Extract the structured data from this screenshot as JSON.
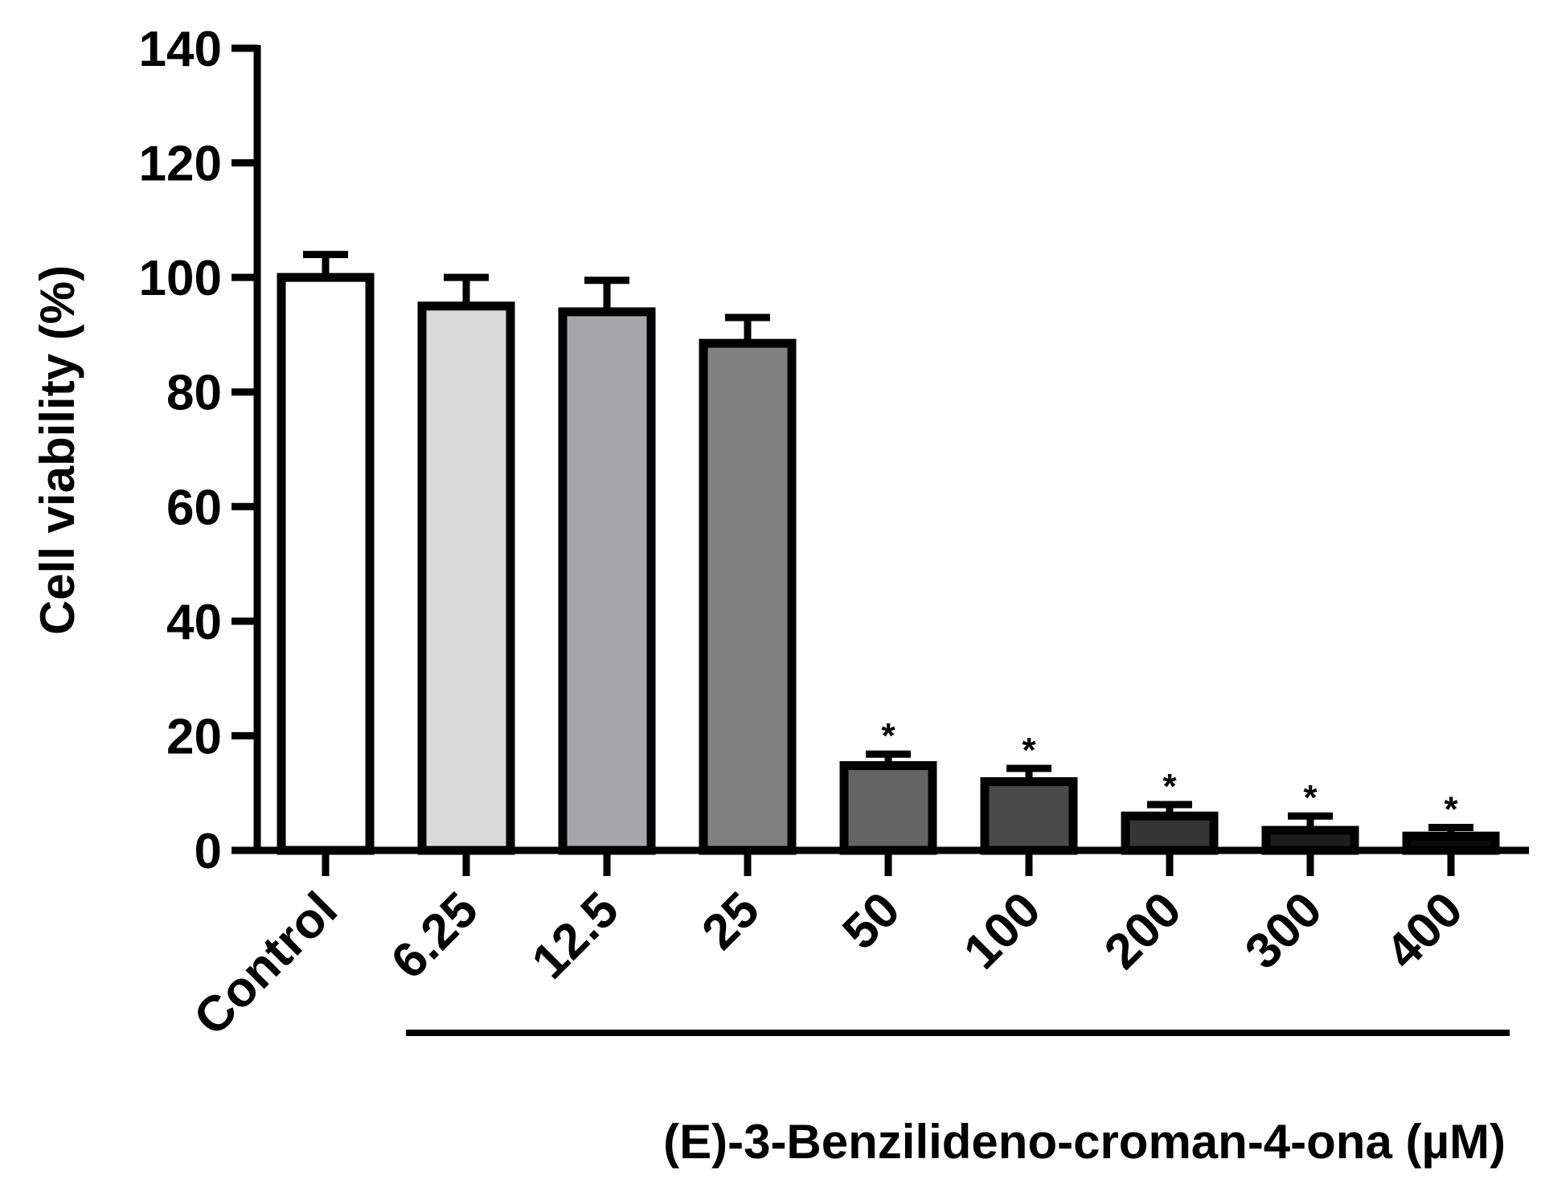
{
  "chart_data": {
    "type": "bar",
    "categories": [
      "Control",
      "6.25",
      "12.5",
      "25",
      "50",
      "100",
      "200",
      "300",
      "400"
    ],
    "values": [
      100,
      95,
      94,
      88.5,
      14.8,
      12,
      6,
      3.5,
      2.5
    ],
    "errors": [
      4,
      5,
      5.5,
      4.5,
      2,
      2.3,
      2,
      2.5,
      1.5
    ],
    "significance": [
      "",
      "",
      "",
      "",
      "*",
      "*",
      "*",
      "*",
      "*"
    ],
    "colors": [
      "#ffffff",
      "#d9d9d9",
      "#a6a6ab",
      "#808080",
      "#646464",
      "#4a4a4a",
      "#363636",
      "#1e1e1e",
      "#0c0c0c"
    ],
    "ylabel": "Cell viability (%)",
    "xlabel": "(E)-3-Benzilideno-croman-4-ona (µM)",
    "ylim": [
      0,
      140
    ],
    "yticks": [
      0,
      20,
      40,
      60,
      80,
      100,
      120,
      140
    ],
    "grid": false,
    "legend": "none"
  }
}
